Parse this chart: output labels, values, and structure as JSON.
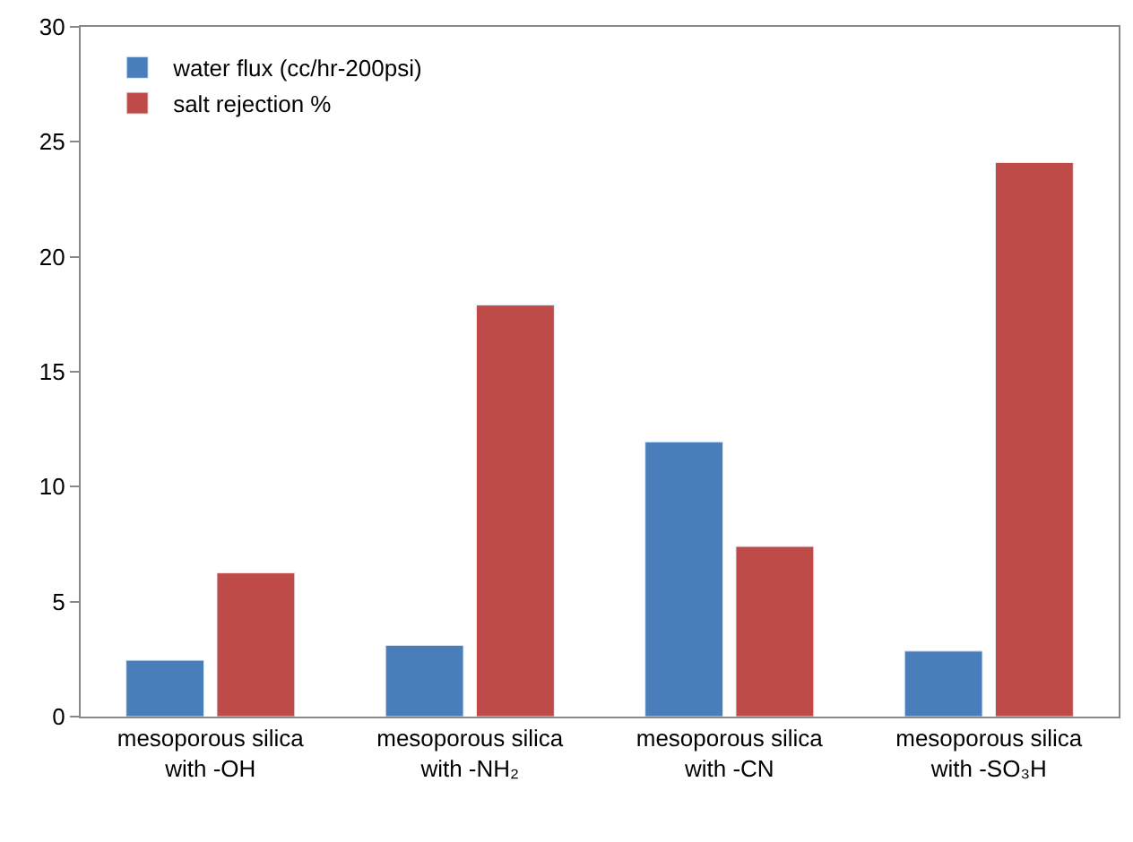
{
  "chart_data": {
    "type": "bar",
    "categories": [
      "mesoporous silica\nwith -OH",
      "mesoporous silica\nwith -NH₂",
      "mesoporous silica\nwith -CN",
      "mesoporous silica\nwith -SO₃H"
    ],
    "series": [
      {
        "name": "water flux (cc/hr-200psi)",
        "color": "#4a7ebb",
        "values": [
          2.45,
          3.1,
          11.95,
          2.85
        ]
      },
      {
        "name": "salt rejection %",
        "color": "#be4b48",
        "values": [
          6.25,
          17.9,
          7.4,
          24.1
        ]
      }
    ],
    "ylim": [
      0,
      30
    ],
    "yticks": [
      0,
      5,
      10,
      15,
      20,
      25,
      30
    ],
    "legend": "top left"
  }
}
